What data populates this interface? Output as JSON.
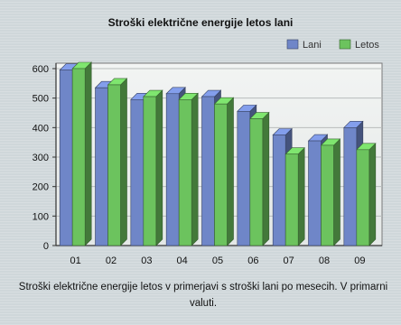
{
  "chart_data": {
    "type": "bar",
    "title": "Stroški električne energije letos lani",
    "caption": "Stroški električne energije letos v primerjavi s stroški lani po mesecih. V primarni valuti.",
    "categories": [
      "01",
      "02",
      "03",
      "04",
      "05",
      "06",
      "07",
      "08",
      "09"
    ],
    "series": [
      {
        "name": "Lani",
        "values": [
          595,
          535,
          495,
          515,
          505,
          455,
          375,
          355,
          400
        ],
        "color": "#6f86c8"
      },
      {
        "name": "Letos",
        "values": [
          600,
          545,
          505,
          495,
          480,
          430,
          310,
          340,
          325
        ],
        "color": "#6cc35e"
      }
    ],
    "yticks": [
      0,
      100,
      200,
      300,
      400,
      500,
      600
    ],
    "ylim": [
      0,
      600
    ],
    "legend_position": "top-right",
    "grid": true
  }
}
